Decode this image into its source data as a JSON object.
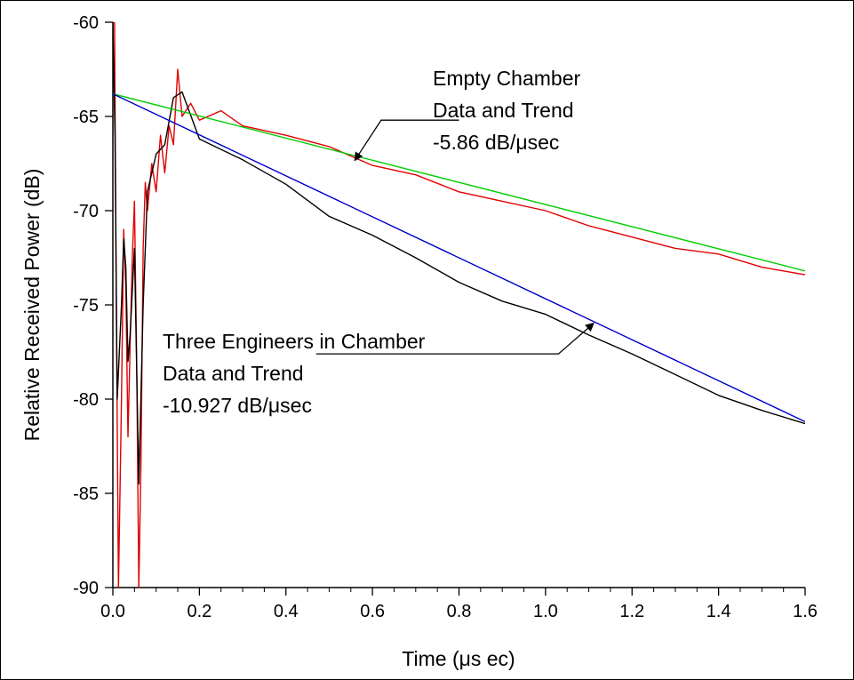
{
  "chart_data": {
    "type": "line",
    "xlabel": "Time (μs ec)",
    "ylabel": "Relative Received Power (dB)",
    "xlim": [
      0.0,
      1.6
    ],
    "ylim": [
      -90,
      -60
    ],
    "x_ticks": [
      "0.0",
      "0.2",
      "0.4",
      "0.6",
      "0.8",
      "1.0",
      "1.2",
      "1.4",
      "1.6"
    ],
    "y_ticks": [
      "-60",
      "-65",
      "-70",
      "-75",
      "-80",
      "-85",
      "-90"
    ],
    "x_minor_step": 0.05,
    "grid": false,
    "series": [
      {
        "color": "#e00000",
        "points": [
          [
            0.0,
            -60.0
          ],
          [
            0.004,
            -60.0
          ],
          [
            0.008,
            -75.0
          ],
          [
            0.013,
            -90.0
          ],
          [
            0.02,
            -80.0
          ],
          [
            0.025,
            -71.0
          ],
          [
            0.03,
            -74.0
          ],
          [
            0.035,
            -82.0
          ],
          [
            0.04,
            -77.0
          ],
          [
            0.045,
            -72.5
          ],
          [
            0.05,
            -69.5
          ],
          [
            0.055,
            -78.0
          ],
          [
            0.06,
            -90.0
          ],
          [
            0.065,
            -83.5
          ],
          [
            0.07,
            -72.0
          ],
          [
            0.075,
            -68.5
          ],
          [
            0.08,
            -70.0
          ],
          [
            0.09,
            -67.5
          ],
          [
            0.1,
            -69.0
          ],
          [
            0.11,
            -66.0
          ],
          [
            0.12,
            -68.0
          ],
          [
            0.13,
            -65.5
          ],
          [
            0.14,
            -66.5
          ],
          [
            0.15,
            -62.5
          ],
          [
            0.16,
            -65.0
          ],
          [
            0.18,
            -64.3
          ],
          [
            0.2,
            -65.2
          ],
          [
            0.25,
            -64.7
          ],
          [
            0.3,
            -65.5
          ],
          [
            0.4,
            -66.0
          ],
          [
            0.5,
            -66.6
          ],
          [
            0.6,
            -67.6
          ],
          [
            0.7,
            -68.1
          ],
          [
            0.8,
            -69.0
          ],
          [
            0.9,
            -69.5
          ],
          [
            1.0,
            -70.0
          ],
          [
            1.1,
            -70.8
          ],
          [
            1.2,
            -71.4
          ],
          [
            1.3,
            -72.0
          ],
          [
            1.4,
            -72.3
          ],
          [
            1.5,
            -73.0
          ],
          [
            1.6,
            -73.4
          ]
        ]
      },
      {
        "color": "#000000",
        "points": [
          [
            0.0,
            -60.0
          ],
          [
            0.005,
            -66.0
          ],
          [
            0.01,
            -80.0
          ],
          [
            0.02,
            -75.0
          ],
          [
            0.025,
            -71.5
          ],
          [
            0.03,
            -73.0
          ],
          [
            0.035,
            -78.0
          ],
          [
            0.04,
            -76.5
          ],
          [
            0.05,
            -72.0
          ],
          [
            0.06,
            -84.5
          ],
          [
            0.07,
            -75.0
          ],
          [
            0.08,
            -69.0
          ],
          [
            0.1,
            -67.0
          ],
          [
            0.12,
            -66.5
          ],
          [
            0.14,
            -64.0
          ],
          [
            0.16,
            -63.7
          ],
          [
            0.2,
            -66.2
          ],
          [
            0.3,
            -67.3
          ],
          [
            0.4,
            -68.6
          ],
          [
            0.5,
            -70.3
          ],
          [
            0.6,
            -71.3
          ],
          [
            0.7,
            -72.5
          ],
          [
            0.8,
            -73.8
          ],
          [
            0.9,
            -74.8
          ],
          [
            1.0,
            -75.5
          ],
          [
            1.1,
            -76.6
          ],
          [
            1.2,
            -77.6
          ],
          [
            1.3,
            -78.7
          ],
          [
            1.4,
            -79.8
          ],
          [
            1.5,
            -80.6
          ],
          [
            1.6,
            -81.3
          ]
        ]
      },
      {
        "color": "#00cc00",
        "points": [
          [
            0.0,
            -63.8
          ],
          [
            1.6,
            -73.2
          ]
        ]
      },
      {
        "color": "#0000cc",
        "points": [
          [
            0.0,
            -63.8
          ],
          [
            1.6,
            -81.2
          ]
        ]
      }
    ],
    "annotations": [
      {
        "lines": [
          "Empty Chamber",
          "Data and Trend",
          "-5.86 dB/μsec"
        ],
        "arrow_points": [
          [
            0.8,
            -65.2
          ],
          [
            0.62,
            -65.2
          ],
          [
            0.56,
            -67.3
          ]
        ]
      },
      {
        "lines": [
          "Three Engineers in Chamber",
          "Data and Trend",
          "-10.927 dB/μsec"
        ],
        "arrow_points": [
          [
            0.47,
            -77.6
          ],
          [
            1.03,
            -77.6
          ],
          [
            1.11,
            -76.0
          ]
        ]
      }
    ]
  }
}
